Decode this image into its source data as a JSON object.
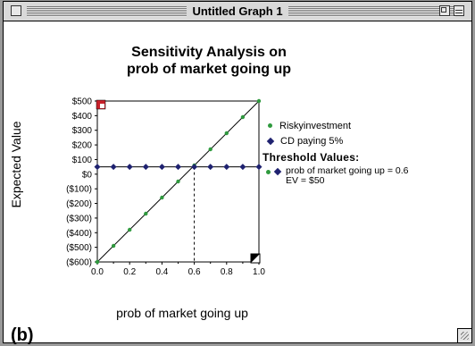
{
  "window": {
    "title": "Untitled Graph 1",
    "panel_label": "(b)"
  },
  "chart_data": {
    "type": "line",
    "title_line1": "Sensitivity Analysis on",
    "title_line2": "prob of market going up",
    "xlabel": "prob of market going up",
    "ylabel": "Expected Value",
    "xlim": [
      0,
      1
    ],
    "ylim": [
      -600,
      500
    ],
    "x_ticks": [
      "0.0",
      "0.2",
      "0.4",
      "0.6",
      "0.8",
      "1.0"
    ],
    "y_ticks": [
      "$500",
      "$400",
      "$300",
      "$200",
      "$100",
      "$0",
      "($100)",
      "($200)",
      "($300)",
      "($400)",
      "($500)",
      "($600)"
    ],
    "x": [
      0.0,
      0.1,
      0.2,
      0.3,
      0.4,
      0.5,
      0.6,
      0.7,
      0.8,
      0.9,
      1.0
    ],
    "series": [
      {
        "name": "Riskyinvestment",
        "values": [
          -600,
          -490,
          -380,
          -270,
          -160,
          -50,
          60,
          170,
          280,
          390,
          500
        ],
        "color": "#2f9a3e",
        "marker": "dot"
      },
      {
        "name": "CD paying 5%",
        "values": [
          50,
          50,
          50,
          50,
          50,
          50,
          50,
          50,
          50,
          50,
          50
        ],
        "color": "#1f2270",
        "marker": "diamond"
      }
    ],
    "threshold": {
      "title": "Threshold Values:",
      "line1": "prob of market going up = 0.6",
      "line2": "EV = $50",
      "x": 0.6,
      "y": 50
    }
  },
  "colors": {
    "risky": "#2f9a3e",
    "cd": "#1f2270",
    "corner_marker": "#c8202a"
  }
}
